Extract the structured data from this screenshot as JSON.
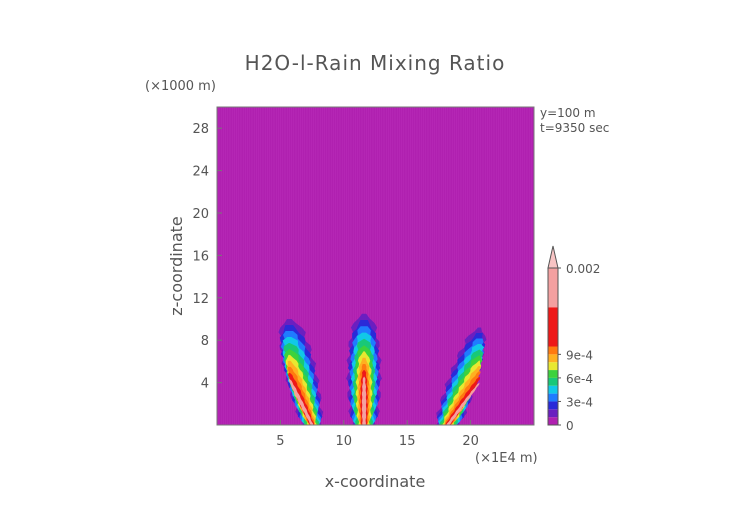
{
  "chart_data": {
    "type": "heatmap",
    "title": "H2O-l-Rain Mixing Ratio",
    "xlabel": "x-coordinate",
    "ylabel": "z-coordinate",
    "x_unit": "(×1E4 m)",
    "y_unit": "(×1000 m)",
    "xlim": [
      0,
      25
    ],
    "ylim": [
      0,
      30
    ],
    "x_ticks": [
      5,
      10,
      15,
      20
    ],
    "y_ticks": [
      4,
      8,
      12,
      16,
      20,
      24,
      28
    ],
    "annotations": [
      "y=100 m",
      "t=9350 sec"
    ],
    "background_color": "#b020b0",
    "colorbar": {
      "range": [
        0,
        0.002
      ],
      "labels": [
        {
          "value": 0,
          "text": "0"
        },
        {
          "value": 0.0003,
          "text": "3e-4"
        },
        {
          "value": 0.0006,
          "text": "6e-4"
        },
        {
          "value": 0.0009,
          "text": "9e-4"
        },
        {
          "value": 0.002,
          "text": "0.002"
        }
      ],
      "colors": [
        {
          "from": 0,
          "to": 0.0001,
          "color": "#b020b0"
        },
        {
          "from": 0.0001,
          "to": 0.0002,
          "color": "#6a1fc0"
        },
        {
          "from": 0.0002,
          "to": 0.0003,
          "color": "#2a2ad8"
        },
        {
          "from": 0.0003,
          "to": 0.0004,
          "color": "#1f7bff"
        },
        {
          "from": 0.0004,
          "to": 0.0005,
          "color": "#11c8e8"
        },
        {
          "from": 0.0005,
          "to": 0.0006,
          "color": "#18c878"
        },
        {
          "from": 0.0006,
          "to": 0.0007,
          "color": "#3cd23c"
        },
        {
          "from": 0.0007,
          "to": 0.0008,
          "color": "#e8e830"
        },
        {
          "from": 0.0008,
          "to": 0.0009,
          "color": "#ffb020"
        },
        {
          "from": 0.0009,
          "to": 0.001,
          "color": "#ff7a10"
        },
        {
          "from": 0.001,
          "to": 0.0015,
          "color": "#ee1818"
        },
        {
          "from": 0.0015,
          "to": 0.002,
          "color": "#f4a0a0"
        }
      ],
      "overflow_color": "#f8c4c4"
    },
    "features": [
      {
        "name": "plume-left",
        "x_center": 7.5,
        "x_halfwidth_bottom": 1.0,
        "x_halfwidth_top": 1.4,
        "z_base": 0,
        "z_top": 10,
        "lean": -1.8,
        "peak_level": 0.0019
      },
      {
        "name": "plume-middle",
        "x_center": 11.6,
        "x_halfwidth_bottom": 1.2,
        "x_halfwidth_top": 1.3,
        "z_base": 0,
        "z_top": 10.5,
        "lean": 0.0,
        "peak_level": 0.0016
      },
      {
        "name": "plume-right",
        "x_center": 18.2,
        "x_halfwidth_bottom": 1.2,
        "x_halfwidth_top": 1.0,
        "z_base": 0,
        "z_top": 9.2,
        "lean": 2.5,
        "peak_level": 0.0019
      }
    ]
  }
}
